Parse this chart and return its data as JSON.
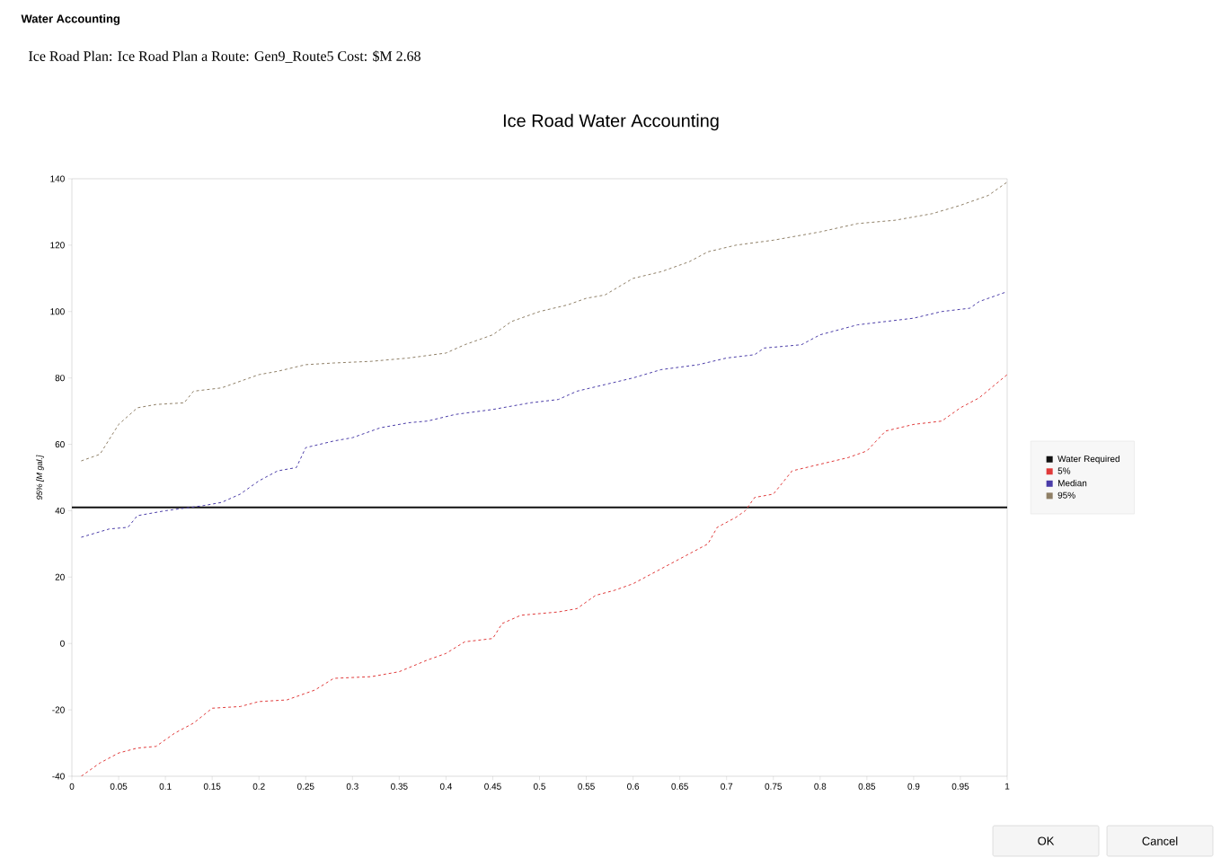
{
  "chart_data": {
    "type": "line",
    "title": "Ice Road Water Accounting",
    "subtitle": "Ice Road Plan: Ice Road Plan a     Route: Gen9_Route5   Cost: $M 2.68",
    "annotations": [
      "Water Accounting",
      "OK",
      "Cancel"
    ],
    "ylabel": "95% [M gal.]",
    "xlim": [
      0,
      1
    ],
    "ylim": [
      -40,
      140
    ],
    "xticks": [
      0,
      0.05,
      0.1,
      0.15,
      0.2,
      0.25,
      0.3,
      0.35,
      0.4,
      0.45,
      0.5,
      0.55,
      0.6,
      0.65,
      0.7,
      0.75,
      0.8,
      0.85,
      0.9,
      0.95,
      1
    ],
    "yticks": [
      -40,
      -20,
      0,
      20,
      40,
      60,
      80,
      100,
      120,
      140
    ],
    "legend": "right",
    "marker": "none",
    "series": [
      {
        "name": "Water Required",
        "color": "#111111",
        "line_style": "solid",
        "x": [
          0,
          1
        ],
        "values": [
          41,
          41
        ]
      },
      {
        "name": "5%",
        "color": "#e03a3a",
        "line_style": "dashed",
        "x": [
          0.01,
          0.03,
          0.05,
          0.07,
          0.09,
          0.11,
          0.13,
          0.15,
          0.18,
          0.2,
          0.23,
          0.26,
          0.28,
          0.32,
          0.35,
          0.38,
          0.4,
          0.42,
          0.45,
          0.46,
          0.48,
          0.52,
          0.54,
          0.56,
          0.58,
          0.6,
          0.62,
          0.64,
          0.66,
          0.68,
          0.69,
          0.71,
          0.72,
          0.73,
          0.75,
          0.77,
          0.8,
          0.83,
          0.85,
          0.87,
          0.9,
          0.93,
          0.95,
          0.97,
          1.0
        ],
        "values": [
          -40,
          -36,
          -33,
          -31.5,
          -31,
          -27,
          -24,
          -19.5,
          -19,
          -17.5,
          -17,
          -14,
          -10.5,
          -10,
          -8.5,
          -5,
          -3,
          0.5,
          1.5,
          6,
          8.5,
          9.5,
          10.5,
          14.5,
          16,
          18,
          21,
          24,
          27,
          30,
          35,
          38,
          40,
          44,
          45,
          52,
          54,
          56,
          58,
          64,
          66,
          67,
          71,
          74,
          81
        ]
      },
      {
        "name": "Median",
        "color": "#4a3ca8",
        "line_style": "dashed",
        "x": [
          0.01,
          0.04,
          0.06,
          0.07,
          0.1,
          0.14,
          0.16,
          0.18,
          0.2,
          0.22,
          0.24,
          0.25,
          0.28,
          0.3,
          0.33,
          0.36,
          0.38,
          0.41,
          0.45,
          0.49,
          0.52,
          0.54,
          0.57,
          0.6,
          0.63,
          0.67,
          0.7,
          0.73,
          0.74,
          0.78,
          0.8,
          0.84,
          0.87,
          0.9,
          0.93,
          0.96,
          0.97,
          1.0
        ],
        "values": [
          32,
          34.5,
          35,
          38.5,
          40,
          41.5,
          42.5,
          45,
          49,
          52,
          53,
          59,
          61,
          62,
          65,
          66.5,
          67,
          69,
          70.5,
          72.5,
          73.5,
          76,
          78,
          80,
          82.5,
          84,
          86,
          87,
          89,
          90,
          93,
          96,
          97,
          98,
          100,
          101,
          103,
          106
        ]
      },
      {
        "name": "95%",
        "color": "#8f7f66",
        "line_style": "dashed",
        "x": [
          0.01,
          0.03,
          0.05,
          0.07,
          0.09,
          0.12,
          0.13,
          0.16,
          0.18,
          0.2,
          0.22,
          0.25,
          0.28,
          0.32,
          0.36,
          0.4,
          0.42,
          0.45,
          0.47,
          0.5,
          0.53,
          0.55,
          0.57,
          0.6,
          0.63,
          0.66,
          0.68,
          0.71,
          0.75,
          0.8,
          0.84,
          0.88,
          0.92,
          0.95,
          0.98,
          1.0
        ],
        "values": [
          55,
          57,
          66,
          71,
          72,
          72.5,
          76,
          77,
          79,
          81,
          82,
          84,
          84.5,
          85,
          86,
          87.5,
          90,
          93,
          97,
          100,
          102,
          104,
          105,
          110,
          112,
          115,
          118,
          120,
          121.5,
          124,
          126.5,
          127.5,
          129.5,
          132,
          135,
          139
        ]
      }
    ]
  }
}
